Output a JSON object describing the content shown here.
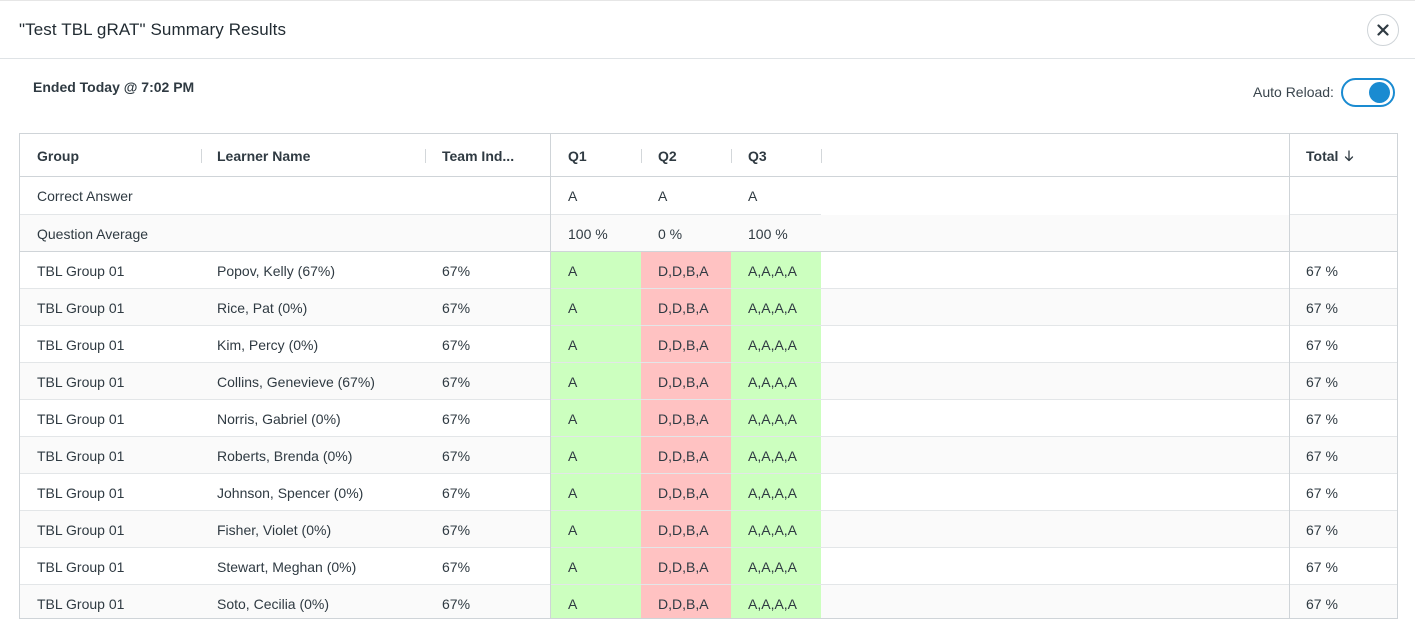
{
  "modal": {
    "title": "\"Test TBL gRAT\" Summary Results",
    "ended": "Ended Today @ 7:02 PM",
    "auto_reload_label": "Auto Reload:",
    "auto_reload_on": true
  },
  "table": {
    "columns": {
      "group": "Group",
      "learner": "Learner Name",
      "team": "Team Ind...",
      "q1": "Q1",
      "q2": "Q2",
      "q3": "Q3",
      "total": "Total",
      "total_sort_icon": "arrow-down-icon"
    },
    "correct_answer": {
      "label": "Correct Answer",
      "q1": "A",
      "q2": "A",
      "q3": "A"
    },
    "question_average": {
      "label": "Question Average",
      "q1": "100 %",
      "q2": "0 %",
      "q3": "100 %"
    },
    "rows": [
      {
        "group": "TBL Group 01",
        "learner": "Popov, Kelly (67%)",
        "team": "67%",
        "q1": "A",
        "q2": "D,D,B,A",
        "q3": "A,A,A,A",
        "total": "67 %"
      },
      {
        "group": "TBL Group 01",
        "learner": "Rice, Pat (0%)",
        "team": "67%",
        "q1": "A",
        "q2": "D,D,B,A",
        "q3": "A,A,A,A",
        "total": "67 %"
      },
      {
        "group": "TBL Group 01",
        "learner": "Kim, Percy (0%)",
        "team": "67%",
        "q1": "A",
        "q2": "D,D,B,A",
        "q3": "A,A,A,A",
        "total": "67 %"
      },
      {
        "group": "TBL Group 01",
        "learner": "Collins, Genevieve (67%)",
        "team": "67%",
        "q1": "A",
        "q2": "D,D,B,A",
        "q3": "A,A,A,A",
        "total": "67 %"
      },
      {
        "group": "TBL Group 01",
        "learner": "Norris, Gabriel (0%)",
        "team": "67%",
        "q1": "A",
        "q2": "D,D,B,A",
        "q3": "A,A,A,A",
        "total": "67 %"
      },
      {
        "group": "TBL Group 01",
        "learner": "Roberts, Brenda (0%)",
        "team": "67%",
        "q1": "A",
        "q2": "D,D,B,A",
        "q3": "A,A,A,A",
        "total": "67 %"
      },
      {
        "group": "TBL Group 01",
        "learner": "Johnson, Spencer (0%)",
        "team": "67%",
        "q1": "A",
        "q2": "D,D,B,A",
        "q3": "A,A,A,A",
        "total": "67 %"
      },
      {
        "group": "TBL Group 01",
        "learner": "Fisher, Violet (0%)",
        "team": "67%",
        "q1": "A",
        "q2": "D,D,B,A",
        "q3": "A,A,A,A",
        "total": "67 %"
      },
      {
        "group": "TBL Group 01",
        "learner": "Stewart, Meghan (0%)",
        "team": "67%",
        "q1": "A",
        "q2": "D,D,B,A",
        "q3": "A,A,A,A",
        "total": "67 %"
      },
      {
        "group": "TBL Group 01",
        "learner": "Soto, Cecilia (0%)",
        "team": "67%",
        "q1": "A",
        "q2": "D,D,B,A",
        "q3": "A,A,A,A",
        "total": "67 %"
      }
    ],
    "colors": {
      "correct": "#ccffbf",
      "incorrect": "#ffc2c2",
      "accent": "#1a8bd1"
    }
  }
}
